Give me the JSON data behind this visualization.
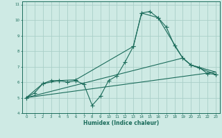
{
  "xlabel": "Humidex (Indice chaleur)",
  "bg_color": "#ceeae4",
  "grid_color": "#aacfc8",
  "line_color": "#1a6b5a",
  "xlim": [
    -0.5,
    23.5
  ],
  "ylim": [
    4,
    11.2
  ],
  "yticks": [
    4,
    5,
    6,
    7,
    8,
    9,
    10,
    11
  ],
  "xticks": [
    0,
    1,
    2,
    3,
    4,
    5,
    6,
    7,
    8,
    9,
    10,
    11,
    12,
    13,
    14,
    15,
    16,
    17,
    18,
    19,
    20,
    21,
    22,
    23
  ],
  "line1_x": [
    0,
    1,
    2,
    3,
    4,
    5,
    6,
    7,
    8,
    9,
    10,
    11,
    12,
    13,
    14,
    15,
    16,
    17,
    18,
    19,
    20,
    21,
    22,
    23
  ],
  "line1_y": [
    5.0,
    5.3,
    5.9,
    6.1,
    6.1,
    6.0,
    6.1,
    5.85,
    4.5,
    5.1,
    6.1,
    6.4,
    7.3,
    8.3,
    10.45,
    10.55,
    10.15,
    9.55,
    8.35,
    7.55,
    7.1,
    6.95,
    6.55,
    6.5
  ],
  "line2_x": [
    0,
    2,
    4,
    6,
    13,
    14,
    16,
    19,
    20,
    23
  ],
  "line2_y": [
    5.0,
    5.9,
    6.1,
    6.15,
    8.3,
    10.45,
    10.15,
    7.55,
    7.1,
    6.5
  ],
  "line3_x": [
    0,
    23
  ],
  "line3_y": [
    5.0,
    6.65
  ],
  "line4_x": [
    0,
    19,
    20,
    23
  ],
  "line4_y": [
    5.0,
    7.55,
    7.1,
    6.65
  ]
}
